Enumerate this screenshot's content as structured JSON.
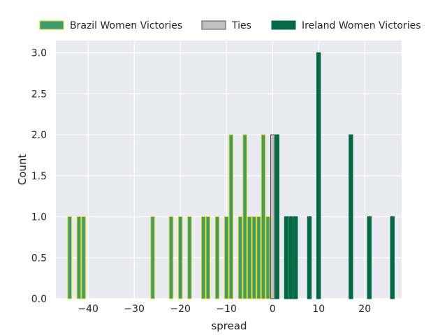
{
  "chart_data": {
    "type": "bar",
    "xlabel": "spread",
    "ylabel": "Count",
    "xlim": [
      -47,
      28
    ],
    "ylim": [
      0,
      3.15
    ],
    "xticks": [
      -40,
      -30,
      -20,
      -10,
      0,
      10,
      20
    ],
    "xtick_labels": [
      "−40",
      "−30",
      "−20",
      "−10",
      "0",
      "10",
      "20"
    ],
    "yticks": [
      0,
      0.5,
      1,
      1.5,
      2,
      2.5,
      3
    ],
    "ytick_labels": [
      "0.0",
      "0.5",
      "1.0",
      "1.5",
      "2.0",
      "2.5",
      "3.0"
    ],
    "grid": true,
    "legend_placement": "top-center-outside",
    "series": [
      {
        "name": "Brazil Women Victories",
        "color": "#3a9d70",
        "edge_color": "#e6d200",
        "x": [
          -44,
          -42,
          -41,
          -26,
          -22,
          -20,
          -18,
          -15,
          -14,
          -12,
          -10,
          -9,
          -7,
          -6,
          -5,
          -4,
          -3,
          -2,
          -1
        ],
        "values": [
          1,
          1,
          1,
          1,
          1,
          1,
          1,
          1,
          1,
          1,
          1,
          2,
          1,
          2,
          1,
          1,
          1,
          2,
          1
        ]
      },
      {
        "name": "Ties",
        "color": "#c0c0c0",
        "edge_color": "#555555",
        "x": [
          0
        ],
        "values": [
          2
        ]
      },
      {
        "name": "Ireland Women Victories",
        "color": "#006b45",
        "edge_color": "#006b45",
        "x": [
          1,
          3,
          4,
          5,
          8,
          10,
          17,
          21,
          26
        ],
        "values": [
          2,
          1,
          1,
          1,
          1,
          3,
          2,
          1,
          1
        ]
      }
    ]
  }
}
